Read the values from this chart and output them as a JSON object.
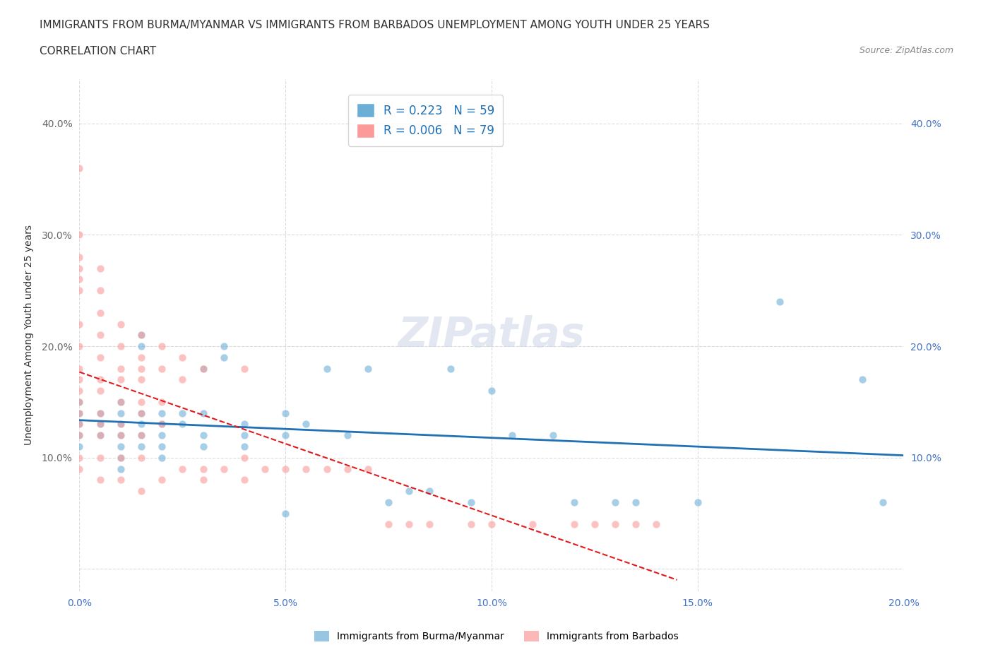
{
  "title_line1": "IMMIGRANTS FROM BURMA/MYANMAR VS IMMIGRANTS FROM BARBADOS UNEMPLOYMENT AMONG YOUTH UNDER 25 YEARS",
  "title_line2": "CORRELATION CHART",
  "source_text": "Source: ZipAtlas.com",
  "xlabel": "",
  "ylabel": "Unemployment Among Youth under 25 years",
  "xlim": [
    0.0,
    0.2
  ],
  "ylim": [
    -0.02,
    0.44
  ],
  "xticks": [
    0.0,
    0.05,
    0.1,
    0.15,
    0.2
  ],
  "xtick_labels": [
    "0.0%",
    "5.0%",
    "10.0%",
    "15.0%",
    "20.0%"
  ],
  "yticks": [
    0.0,
    0.1,
    0.2,
    0.3,
    0.4
  ],
  "ytick_labels_left": [
    "",
    "10.0%",
    "20.0%",
    "30.0%",
    "40.0%"
  ],
  "ytick_labels_right": [
    "",
    "10.0%",
    "20.0%",
    "30.0%",
    "40.0%"
  ],
  "blue_color": "#6baed6",
  "pink_color": "#fb9a99",
  "blue_line_color": "#2171b5",
  "pink_line_color": "#e31a1c",
  "R_blue": 0.223,
  "N_blue": 59,
  "R_pink": 0.006,
  "N_pink": 79,
  "legend_label_blue": "Immigrants from Burma/Myanmar",
  "legend_label_pink": "Immigrants from Barbados",
  "watermark": "ZIPatlas",
  "blue_scatter_x": [
    0.0,
    0.0,
    0.0,
    0.0,
    0.0,
    0.005,
    0.005,
    0.005,
    0.01,
    0.01,
    0.01,
    0.01,
    0.01,
    0.01,
    0.01,
    0.015,
    0.015,
    0.015,
    0.015,
    0.015,
    0.015,
    0.02,
    0.02,
    0.02,
    0.02,
    0.02,
    0.025,
    0.025,
    0.03,
    0.03,
    0.03,
    0.03,
    0.035,
    0.035,
    0.04,
    0.04,
    0.04,
    0.05,
    0.05,
    0.05,
    0.055,
    0.06,
    0.065,
    0.07,
    0.075,
    0.08,
    0.085,
    0.09,
    0.095,
    0.1,
    0.105,
    0.115,
    0.12,
    0.13,
    0.135,
    0.15,
    0.17,
    0.19,
    0.195
  ],
  "blue_scatter_y": [
    0.13,
    0.14,
    0.12,
    0.15,
    0.11,
    0.13,
    0.14,
    0.12,
    0.13,
    0.15,
    0.14,
    0.12,
    0.11,
    0.1,
    0.09,
    0.13,
    0.14,
    0.12,
    0.11,
    0.2,
    0.21,
    0.13,
    0.14,
    0.12,
    0.11,
    0.1,
    0.13,
    0.14,
    0.18,
    0.14,
    0.12,
    0.11,
    0.19,
    0.2,
    0.13,
    0.12,
    0.11,
    0.14,
    0.12,
    0.05,
    0.13,
    0.18,
    0.12,
    0.18,
    0.06,
    0.07,
    0.07,
    0.18,
    0.06,
    0.16,
    0.12,
    0.12,
    0.06,
    0.06,
    0.06,
    0.06,
    0.24,
    0.17,
    0.06
  ],
  "pink_scatter_x": [
    0.0,
    0.0,
    0.0,
    0.0,
    0.0,
    0.0,
    0.0,
    0.0,
    0.0,
    0.0,
    0.0,
    0.0,
    0.0,
    0.0,
    0.0,
    0.0,
    0.0,
    0.005,
    0.005,
    0.005,
    0.005,
    0.005,
    0.005,
    0.005,
    0.005,
    0.005,
    0.005,
    0.005,
    0.005,
    0.01,
    0.01,
    0.01,
    0.01,
    0.01,
    0.01,
    0.01,
    0.01,
    0.01,
    0.015,
    0.015,
    0.015,
    0.015,
    0.015,
    0.015,
    0.015,
    0.015,
    0.015,
    0.02,
    0.02,
    0.02,
    0.02,
    0.02,
    0.025,
    0.025,
    0.025,
    0.03,
    0.03,
    0.03,
    0.035,
    0.04,
    0.04,
    0.04,
    0.045,
    0.05,
    0.055,
    0.06,
    0.065,
    0.07,
    0.075,
    0.08,
    0.085,
    0.095,
    0.1,
    0.11,
    0.12,
    0.125,
    0.13,
    0.135,
    0.14
  ],
  "pink_scatter_y": [
    0.36,
    0.3,
    0.28,
    0.27,
    0.26,
    0.25,
    0.22,
    0.2,
    0.18,
    0.17,
    0.16,
    0.15,
    0.14,
    0.13,
    0.12,
    0.1,
    0.09,
    0.27,
    0.25,
    0.23,
    0.21,
    0.19,
    0.17,
    0.16,
    0.14,
    0.13,
    0.12,
    0.1,
    0.08,
    0.22,
    0.2,
    0.18,
    0.17,
    0.15,
    0.13,
    0.12,
    0.1,
    0.08,
    0.21,
    0.19,
    0.18,
    0.17,
    0.15,
    0.14,
    0.12,
    0.1,
    0.07,
    0.2,
    0.18,
    0.15,
    0.13,
    0.08,
    0.19,
    0.17,
    0.09,
    0.18,
    0.09,
    0.08,
    0.09,
    0.18,
    0.1,
    0.08,
    0.09,
    0.09,
    0.09,
    0.09,
    0.09,
    0.09,
    0.04,
    0.04,
    0.04,
    0.04,
    0.04,
    0.04,
    0.04,
    0.04,
    0.04,
    0.04,
    0.04
  ]
}
